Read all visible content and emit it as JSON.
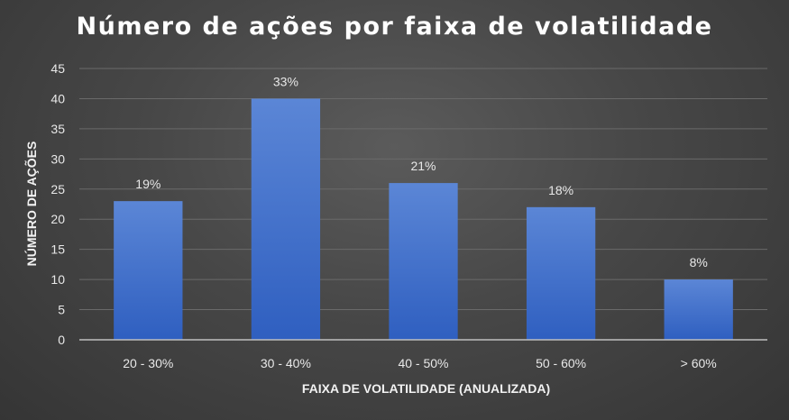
{
  "chart_data": {
    "type": "bar",
    "title": "Número de ações por faixa de volatilidade",
    "xlabel": "FAIXA DE VOLATILIDADE (ANUALIZADA)",
    "ylabel": "NÚMERO DE AÇÕES",
    "categories": [
      "20 - 30%",
      "30 - 40%",
      "40 - 50%",
      "50 - 60%",
      "> 60%"
    ],
    "values": [
      23,
      40,
      26,
      22,
      10
    ],
    "data_labels": [
      "19%",
      "33%",
      "21%",
      "18%",
      "8%"
    ],
    "ylim": [
      0,
      45
    ],
    "yticks": [
      "0",
      "5",
      "10",
      "15",
      "20",
      "25",
      "30",
      "35",
      "40",
      "45"
    ],
    "grid": true,
    "legend": "none",
    "colors": {
      "bar_top": "#5b86d6",
      "bar_bottom": "#2f5fc0",
      "grid": "#6a6a6a",
      "axis": "#bfbfbf",
      "text": "#e8e8e8"
    }
  }
}
